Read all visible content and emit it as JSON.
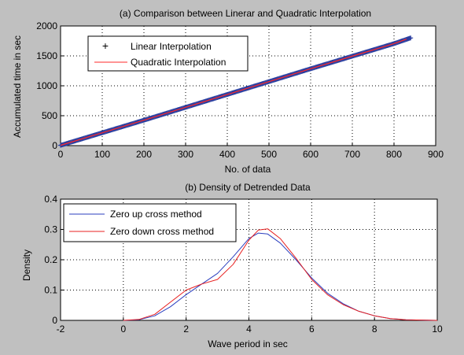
{
  "chart_data": [
    {
      "type": "scatter",
      "title": "(a) Comparison between Linerar and Quadratic Interpolation",
      "xlabel": "No. of data",
      "ylabel": "Accumulated time in sec",
      "xlim": [
        0,
        900
      ],
      "ylim": [
        0,
        2000
      ],
      "xticks": [
        0,
        100,
        200,
        300,
        400,
        500,
        600,
        700,
        800,
        900
      ],
      "yticks": [
        0,
        500,
        1000,
        1500,
        2000
      ],
      "grid": true,
      "legend_position": "top-left",
      "series": [
        {
          "name": "Linear Interpolation",
          "marker": "+",
          "color": "#2b3fa0",
          "x": [
            0,
            100,
            200,
            300,
            400,
            500,
            600,
            700,
            800,
            840
          ],
          "y": [
            5,
            215,
            425,
            640,
            855,
            1070,
            1285,
            1495,
            1705,
            1800
          ]
        },
        {
          "name": "Quadratic Interpolation",
          "line": true,
          "color": "#ff2a2a",
          "x": [
            0,
            100,
            200,
            300,
            400,
            500,
            600,
            700,
            800,
            830
          ],
          "y": [
            5,
            215,
            425,
            640,
            855,
            1070,
            1285,
            1495,
            1705,
            1780
          ]
        }
      ]
    },
    {
      "type": "line",
      "title": "(b) Density of Detrended Data",
      "xlabel": "Wave period in sec",
      "ylabel": "Density",
      "xlim": [
        -2,
        10
      ],
      "ylim": [
        0,
        0.4
      ],
      "xticks": [
        -2,
        0,
        2,
        4,
        6,
        8,
        10
      ],
      "yticks": [
        0,
        0.1,
        0.2,
        0.3,
        0.4
      ],
      "grid": true,
      "legend_position": "top-left",
      "series": [
        {
          "name": "Zero up cross method",
          "color": "#2b3fbf",
          "x": [
            0,
            0.5,
            1,
            1.5,
            2,
            2.5,
            3,
            3.5,
            4,
            4.3,
            4.6,
            5,
            5.5,
            6,
            6.5,
            7,
            7.5,
            8,
            8.5,
            9,
            9.5,
            10
          ],
          "y": [
            0,
            0.002,
            0.015,
            0.045,
            0.085,
            0.12,
            0.155,
            0.21,
            0.27,
            0.288,
            0.285,
            0.255,
            0.2,
            0.14,
            0.09,
            0.055,
            0.03,
            0.015,
            0.006,
            0.002,
            0.001,
            0
          ]
        },
        {
          "name": "Zero down cross method",
          "color": "#e82020",
          "x": [
            0,
            0.5,
            1,
            1.5,
            2,
            2.5,
            3,
            3.5,
            4,
            4.3,
            4.6,
            5,
            5.5,
            6,
            6.5,
            7,
            7.5,
            8,
            8.5,
            9,
            9.5,
            10
          ],
          "y": [
            0,
            0.003,
            0.02,
            0.06,
            0.1,
            0.12,
            0.135,
            0.185,
            0.265,
            0.298,
            0.302,
            0.27,
            0.205,
            0.135,
            0.085,
            0.052,
            0.03,
            0.015,
            0.006,
            0.002,
            0.001,
            0
          ]
        }
      ]
    }
  ]
}
